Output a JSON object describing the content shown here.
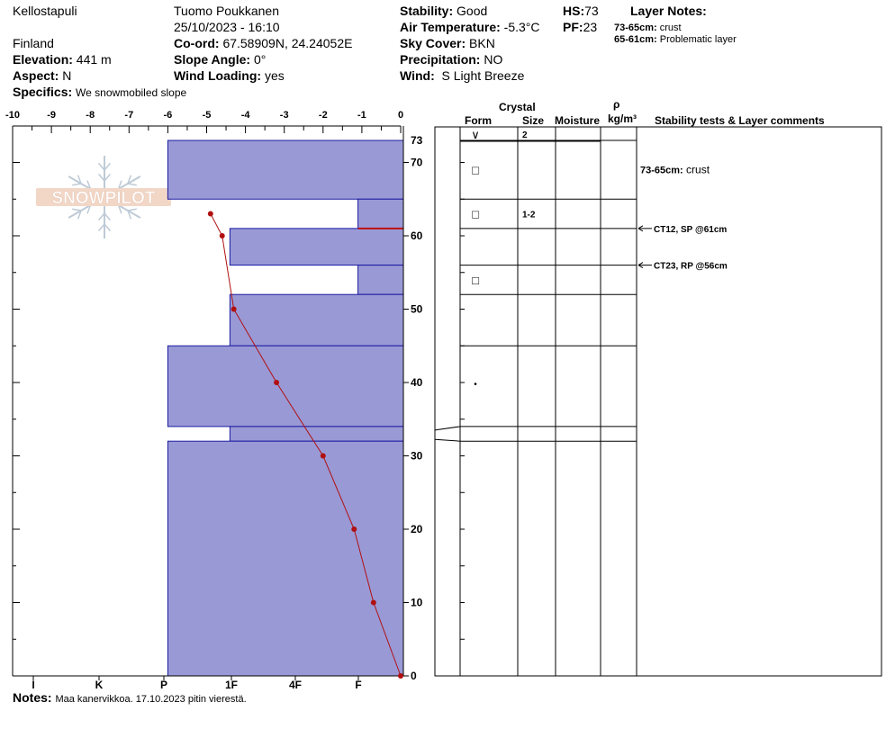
{
  "header": {
    "location": "Kellostapuli",
    "country": "Finland",
    "observer": "Tuomo Poukkanen",
    "datetime": "25/10/2023 - 16:10",
    "elevation_label": "Elevation:",
    "elevation": "441 m",
    "aspect_label": "Aspect:",
    "aspect": "N",
    "specifics_label": "Specifics:",
    "specifics": "We snowmobiled slope",
    "coord_label": "Co-ord:",
    "coord": "67.58909N, 24.24052E",
    "slope_label": "Slope Angle:",
    "slope": "0°",
    "wind_loading_label": "Wind Loading:",
    "wind_loading": "yes",
    "stability_label": "Stability:",
    "stability": "Good",
    "air_temp_label": "Air Temperature:",
    "air_temp": "-5.3°C",
    "sky_label": "Sky Cover:",
    "sky": "BKN",
    "precip_label": "Precipitation:",
    "precip": "NO",
    "wind_label": "Wind:",
    "wind": "S Light Breeze",
    "hs_label": "HS:",
    "hs": "73",
    "pf_label": "PF:",
    "pf": "23",
    "layer_notes_label": "Layer Notes:",
    "layer_notes": [
      {
        "range": "73-65cm:",
        "text": "crust"
      },
      {
        "range": "65-61cm:",
        "text": "Problematic layer"
      }
    ]
  },
  "logo_text": "SNOWPILOT",
  "notes_label": "Notes:",
  "notes": "Maa kanervikkoa. 17.10.2023 pitin vierestä.",
  "columns": {
    "crystal": "Crystal",
    "form": "Form",
    "size": "Size",
    "moisture": "Moisture",
    "rho": "ρ",
    "density_unit": "kg/m³",
    "comments": "Stability tests & Layer comments"
  },
  "colors": {
    "hardness_fill": "#9999d6",
    "hardness_edge": "#1a1aa0",
    "temperature": "#b01010",
    "weak_layer": "#c01010"
  },
  "chart_data": {
    "type": "snow_profile",
    "temp_axis": {
      "ticks": [
        -10,
        -9,
        -8,
        -7,
        -6,
        -5,
        -4,
        -3,
        -2,
        -1,
        0
      ],
      "range": [
        -10,
        0
      ]
    },
    "depth_axis": {
      "ticks": [
        0,
        10,
        20,
        30,
        40,
        50,
        60,
        70
      ],
      "top_label": "73",
      "range": [
        0,
        73
      ]
    },
    "hardness_axis": {
      "labels": [
        "I",
        "K",
        "P",
        "1F",
        "4F",
        "F"
      ],
      "position_index": [
        5,
        4,
        3,
        2,
        1,
        0
      ]
    },
    "hardness_layers": [
      {
        "top": 73,
        "bottom": 65,
        "temp_extent": -6.0
      },
      {
        "top": 65,
        "bottom": 61,
        "temp_extent": -1.1
      },
      {
        "top": 61,
        "bottom": 56,
        "temp_extent": -4.4
      },
      {
        "top": 56,
        "bottom": 52,
        "temp_extent": -1.1
      },
      {
        "top": 52,
        "bottom": 45,
        "temp_extent": -4.4
      },
      {
        "top": 45,
        "bottom": 34,
        "temp_extent": -6.0
      },
      {
        "top": 34,
        "bottom": 32,
        "temp_extent": -4.4
      },
      {
        "top": 32,
        "bottom": 0,
        "temp_extent": -6.0
      }
    ],
    "temperature_profile": [
      {
        "depth": 63,
        "temp": -4.9
      },
      {
        "depth": 60,
        "temp": -4.6
      },
      {
        "depth": 50,
        "temp": -4.3
      },
      {
        "depth": 40,
        "temp": -3.2
      },
      {
        "depth": 30,
        "temp": -2.0
      },
      {
        "depth": 20,
        "temp": -1.2
      },
      {
        "depth": 10,
        "temp": -0.7
      },
      {
        "depth": 0,
        "temp": 0.0
      }
    ],
    "weak_layer_depth": 61,
    "layer_boundaries": [
      73,
      65,
      61,
      56,
      52,
      45,
      34,
      32
    ],
    "crystal_rows": [
      {
        "depth": 72,
        "form": "∨",
        "size": "2"
      },
      {
        "depth": 69,
        "form": "□",
        "size": ""
      },
      {
        "depth": 63,
        "form": "□",
        "size": "1-2"
      },
      {
        "depth": 54,
        "form": "□",
        "size": ""
      },
      {
        "depth": 40,
        "form": "•",
        "size": ""
      }
    ],
    "comments": [
      {
        "depth": 69,
        "range": "73-65cm:",
        "text": "crust",
        "arrow": false
      },
      {
        "depth": 61,
        "range": "",
        "text": "CT12, SP @61cm",
        "arrow": true
      },
      {
        "depth": 56,
        "range": "",
        "text": "CT23, RP @56cm",
        "arrow": true
      }
    ]
  }
}
